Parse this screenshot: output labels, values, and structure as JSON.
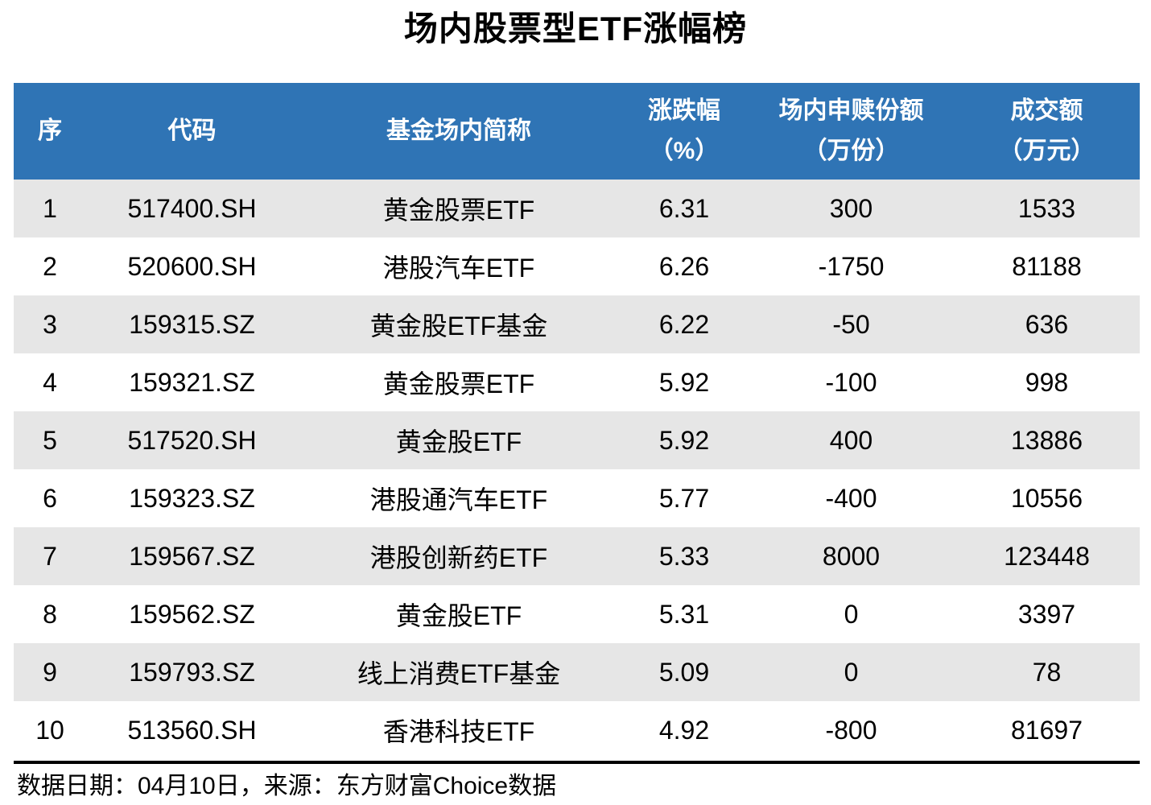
{
  "title": "场内股票型ETF涨幅榜",
  "colors": {
    "header_bg": "#2F74B5",
    "row_alt_bg": "#E6E6E6",
    "header_text": "#FFFFFF",
    "body_text": "#000000"
  },
  "table": {
    "headers": [
      {
        "key": "index",
        "label": "序",
        "sub": ""
      },
      {
        "key": "code",
        "label": "代码",
        "sub": ""
      },
      {
        "key": "name",
        "label": "基金场内简称",
        "sub": ""
      },
      {
        "key": "change",
        "label": "涨跌幅",
        "sub": "（%）"
      },
      {
        "key": "shares",
        "label": "场内申赎份额",
        "sub": "（万份）"
      },
      {
        "key": "turnover",
        "label": "成交额",
        "sub": "（万元）"
      }
    ],
    "rows": [
      [
        "1",
        "517400.SH",
        "黄金股票ETF",
        "6.31",
        "300",
        "1533"
      ],
      [
        "2",
        "520600.SH",
        "港股汽车ETF",
        "6.26",
        "-1750",
        "81188"
      ],
      [
        "3",
        "159315.SZ",
        "黄金股ETF基金",
        "6.22",
        "-50",
        "636"
      ],
      [
        "4",
        "159321.SZ",
        "黄金股票ETF",
        "5.92",
        "-100",
        "998"
      ],
      [
        "5",
        "517520.SH",
        "黄金股ETF",
        "5.92",
        "400",
        "13886"
      ],
      [
        "6",
        "159323.SZ",
        "港股通汽车ETF",
        "5.77",
        "-400",
        "10556"
      ],
      [
        "7",
        "159567.SZ",
        "港股创新药ETF",
        "5.33",
        "8000",
        "123448"
      ],
      [
        "8",
        "159562.SZ",
        "黄金股ETF",
        "5.31",
        "0",
        "3397"
      ],
      [
        "9",
        "159793.SZ",
        "线上消费ETF基金",
        "5.09",
        "0",
        "78"
      ],
      [
        "10",
        "513560.SH",
        "香港科技ETF",
        "4.92",
        "-800",
        "81697"
      ]
    ]
  },
  "footer": {
    "note": "数据日期：04月10日，来源：东方财富Choice数据"
  },
  "chart_data": {
    "type": "table",
    "title": "场内股票型ETF涨幅榜",
    "columns": [
      "序",
      "代码",
      "基金场内简称",
      "涨跌幅（%）",
      "场内申赎份额（万份）",
      "成交额（万元）"
    ],
    "rows": [
      [
        1,
        "517400.SH",
        "黄金股票ETF",
        6.31,
        300,
        1533
      ],
      [
        2,
        "520600.SH",
        "港股汽车ETF",
        6.26,
        -1750,
        81188
      ],
      [
        3,
        "159315.SZ",
        "黄金股ETF基金",
        6.22,
        -50,
        636
      ],
      [
        4,
        "159321.SZ",
        "黄金股票ETF",
        5.92,
        -100,
        998
      ],
      [
        5,
        "517520.SH",
        "黄金股ETF",
        5.92,
        400,
        13886
      ],
      [
        6,
        "159323.SZ",
        "港股通汽车ETF",
        5.77,
        -400,
        10556
      ],
      [
        7,
        "159567.SZ",
        "港股创新药ETF",
        5.33,
        8000,
        123448
      ],
      [
        8,
        "159562.SZ",
        "黄金股ETF",
        5.31,
        0,
        3397
      ],
      [
        9,
        "159793.SZ",
        "线上消费ETF基金",
        5.09,
        0,
        78
      ],
      [
        10,
        "513560.SH",
        "香港科技ETF",
        4.92,
        -800,
        81697
      ]
    ],
    "source_note": "数据日期：04月10日，来源：东方财富Choice数据"
  }
}
